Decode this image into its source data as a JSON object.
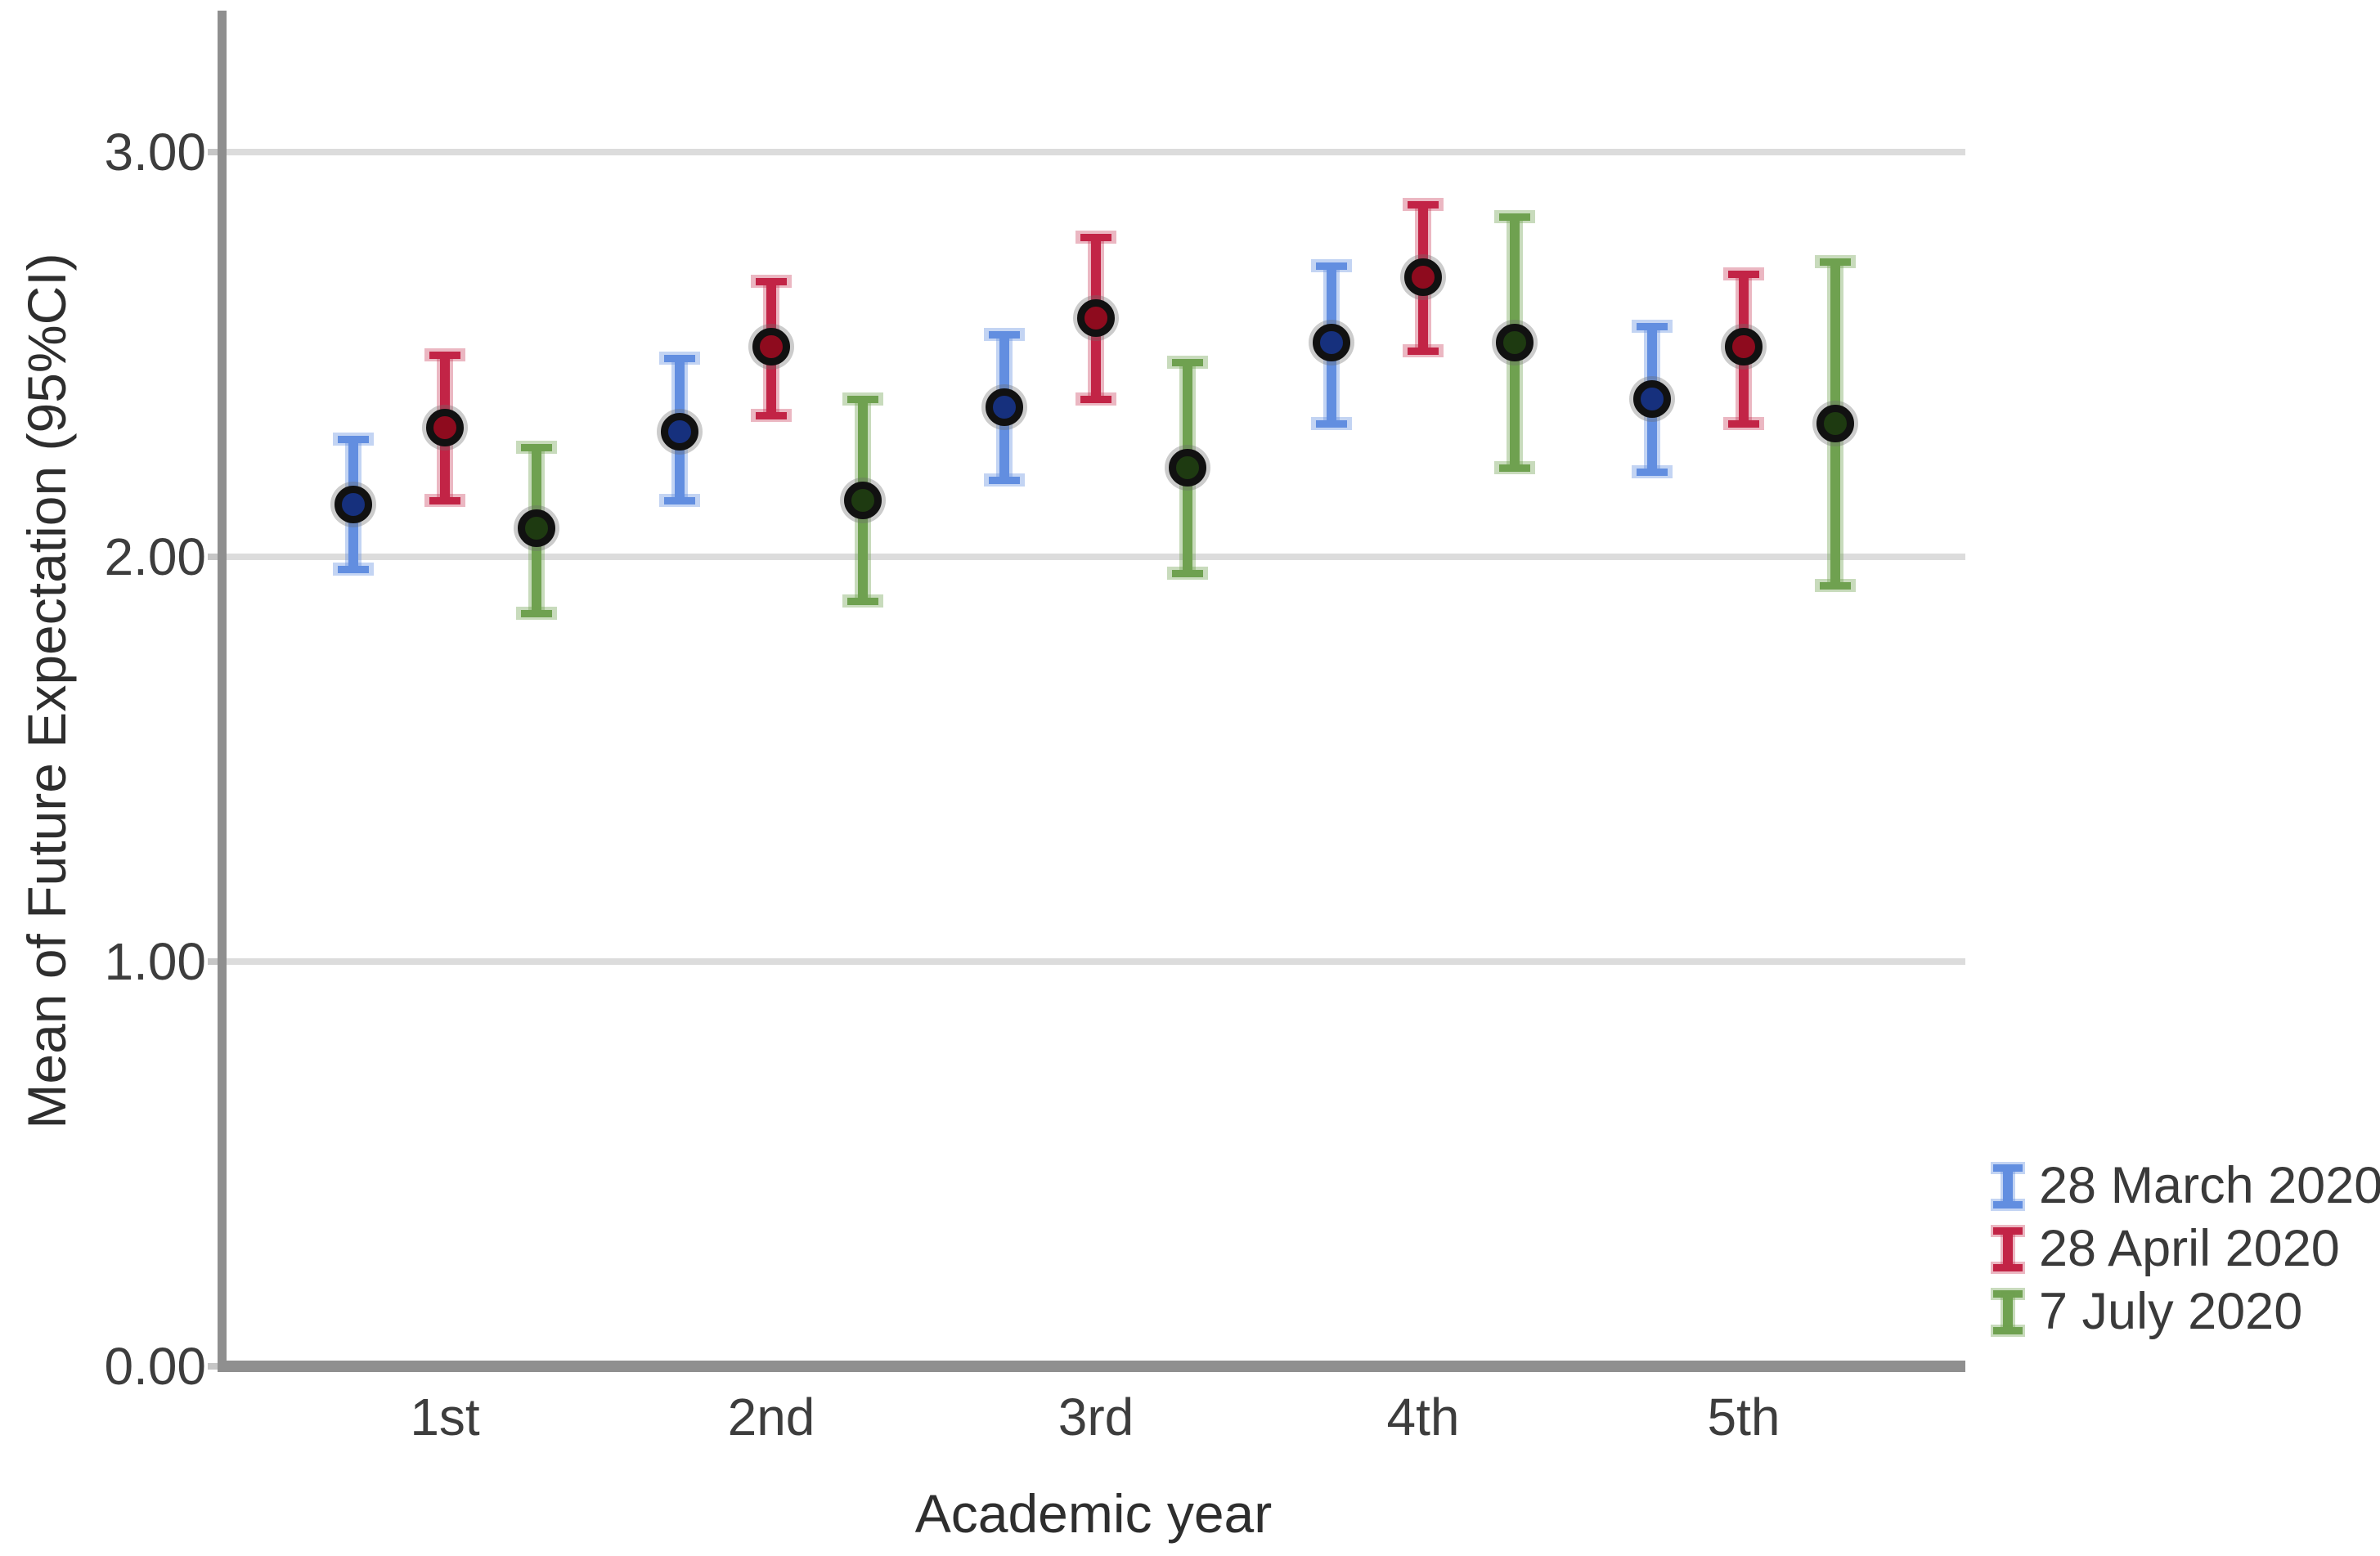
{
  "page": {
    "background": "#ffffff"
  },
  "chart_data": {
    "type": "errorbar",
    "title": "",
    "xlabel": "Academic year",
    "ylabel": "Mean of Future Expectation (95%CI)",
    "categories": [
      "1st",
      "2nd",
      "3rd",
      "4th",
      "5th"
    ],
    "ylim": [
      0,
      3.35
    ],
    "yticks": [
      {
        "value": 0,
        "label": "0.00"
      },
      {
        "value": 1,
        "label": "1.00"
      },
      {
        "value": 2,
        "label": "2.00"
      },
      {
        "value": 3,
        "label": "3.00"
      }
    ],
    "grid": {
      "horizontal": true,
      "color": "#dcdcdc"
    },
    "axis_color": "#8f8f8f",
    "text_color": "#3d3d3d",
    "legend_position": "bottom-right",
    "series": [
      {
        "name": "28 March 2020",
        "bar_color": "#628ee0",
        "halo_color": "rgba(98,142,224,0.38)",
        "marker_color": "#16307d",
        "means": [
          2.13,
          2.31,
          2.37,
          2.53,
          2.39
        ],
        "ci_low": [
          1.97,
          2.14,
          2.19,
          2.33,
          2.21
        ],
        "ci_high": [
          2.29,
          2.49,
          2.55,
          2.72,
          2.57
        ]
      },
      {
        "name": "28 April 2020",
        "bar_color": "#c22446",
        "halo_color": "rgba(194,36,70,0.33)",
        "marker_color": "#8e0b1e",
        "means": [
          2.32,
          2.52,
          2.59,
          2.69,
          2.52
        ],
        "ci_low": [
          2.14,
          2.35,
          2.39,
          2.51,
          2.33
        ],
        "ci_high": [
          2.5,
          2.68,
          2.79,
          2.87,
          2.7
        ]
      },
      {
        "name": "7 July 2020",
        "bar_color": "#6fa150",
        "halo_color": "rgba(111,161,80,0.38)",
        "marker_color": "#1e3a11",
        "means": [
          2.07,
          2.14,
          2.22,
          2.53,
          2.33
        ],
        "ci_low": [
          1.86,
          1.89,
          1.96,
          2.22,
          1.93
        ],
        "ci_high": [
          2.27,
          2.39,
          2.48,
          2.84,
          2.73
        ]
      }
    ]
  }
}
